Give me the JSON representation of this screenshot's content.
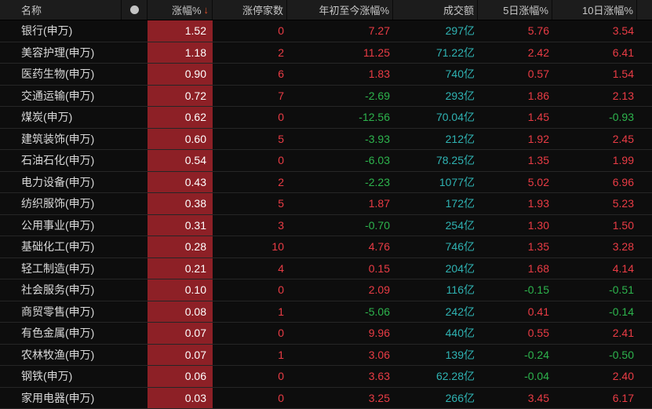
{
  "colors": {
    "up_text": "#ea3c45",
    "down_text": "#2db44d",
    "turnover_text": "#2fb3b3",
    "change_cell_bg": "#8d2026",
    "change_cell_text": "#ffffff",
    "sort_arrow": "#e0512b",
    "header_bg": "#1c1c1c",
    "row_bg": "#0d0d0d"
  },
  "table": {
    "header": {
      "name_label": "名称",
      "dot_icon": "circle-indicator",
      "change_label": "涨幅%",
      "change_sort_icon": "↓",
      "limit_up_label": "涨停家数",
      "ytd_label": "年初至今涨幅%",
      "turnover_label": "成交额",
      "d5_label": "5日涨幅%",
      "d10_label": "10日涨幅%"
    },
    "rows": [
      {
        "name": "银行(申万)",
        "change": "1.52",
        "limit_up": "0",
        "ytd": "7.27",
        "turnover": "297亿",
        "d5": "5.76",
        "d10": "3.54"
      },
      {
        "name": "美容护理(申万)",
        "change": "1.18",
        "limit_up": "2",
        "ytd": "11.25",
        "turnover": "71.22亿",
        "d5": "2.42",
        "d10": "6.41"
      },
      {
        "name": "医药生物(申万)",
        "change": "0.90",
        "limit_up": "6",
        "ytd": "1.83",
        "turnover": "740亿",
        "d5": "0.57",
        "d10": "1.54"
      },
      {
        "name": "交通运输(申万)",
        "change": "0.72",
        "limit_up": "7",
        "ytd": "-2.69",
        "turnover": "293亿",
        "d5": "1.86",
        "d10": "2.13"
      },
      {
        "name": "煤炭(申万)",
        "change": "0.62",
        "limit_up": "0",
        "ytd": "-12.56",
        "turnover": "70.04亿",
        "d5": "1.45",
        "d10": "-0.93"
      },
      {
        "name": "建筑装饰(申万)",
        "change": "0.60",
        "limit_up": "5",
        "ytd": "-3.93",
        "turnover": "212亿",
        "d5": "1.92",
        "d10": "2.45"
      },
      {
        "name": "石油石化(申万)",
        "change": "0.54",
        "limit_up": "0",
        "ytd": "-6.03",
        "turnover": "78.25亿",
        "d5": "1.35",
        "d10": "1.99"
      },
      {
        "name": "电力设备(申万)",
        "change": "0.43",
        "limit_up": "2",
        "ytd": "-2.23",
        "turnover": "1077亿",
        "d5": "5.02",
        "d10": "6.96"
      },
      {
        "name": "纺织服饰(申万)",
        "change": "0.38",
        "limit_up": "5",
        "ytd": "1.87",
        "turnover": "172亿",
        "d5": "1.93",
        "d10": "5.23"
      },
      {
        "name": "公用事业(申万)",
        "change": "0.31",
        "limit_up": "3",
        "ytd": "-0.70",
        "turnover": "254亿",
        "d5": "1.30",
        "d10": "1.50"
      },
      {
        "name": "基础化工(申万)",
        "change": "0.28",
        "limit_up": "10",
        "ytd": "4.76",
        "turnover": "746亿",
        "d5": "1.35",
        "d10": "3.28"
      },
      {
        "name": "轻工制造(申万)",
        "change": "0.21",
        "limit_up": "4",
        "ytd": "0.15",
        "turnover": "204亿",
        "d5": "1.68",
        "d10": "4.14"
      },
      {
        "name": "社会服务(申万)",
        "change": "0.10",
        "limit_up": "0",
        "ytd": "2.09",
        "turnover": "116亿",
        "d5": "-0.15",
        "d10": "-0.51"
      },
      {
        "name": "商贸零售(申万)",
        "change": "0.08",
        "limit_up": "1",
        "ytd": "-5.06",
        "turnover": "242亿",
        "d5": "0.41",
        "d10": "-0.14"
      },
      {
        "name": "有色金属(申万)",
        "change": "0.07",
        "limit_up": "0",
        "ytd": "9.96",
        "turnover": "440亿",
        "d5": "0.55",
        "d10": "2.41"
      },
      {
        "name": "农林牧渔(申万)",
        "change": "0.07",
        "limit_up": "1",
        "ytd": "3.06",
        "turnover": "139亿",
        "d5": "-0.24",
        "d10": "-0.50"
      },
      {
        "name": "钢铁(申万)",
        "change": "0.06",
        "limit_up": "0",
        "ytd": "3.63",
        "turnover": "62.28亿",
        "d5": "-0.04",
        "d10": "2.40"
      },
      {
        "name": "家用电器(申万)",
        "change": "0.03",
        "limit_up": "0",
        "ytd": "3.25",
        "turnover": "266亿",
        "d5": "3.45",
        "d10": "6.17"
      }
    ]
  }
}
